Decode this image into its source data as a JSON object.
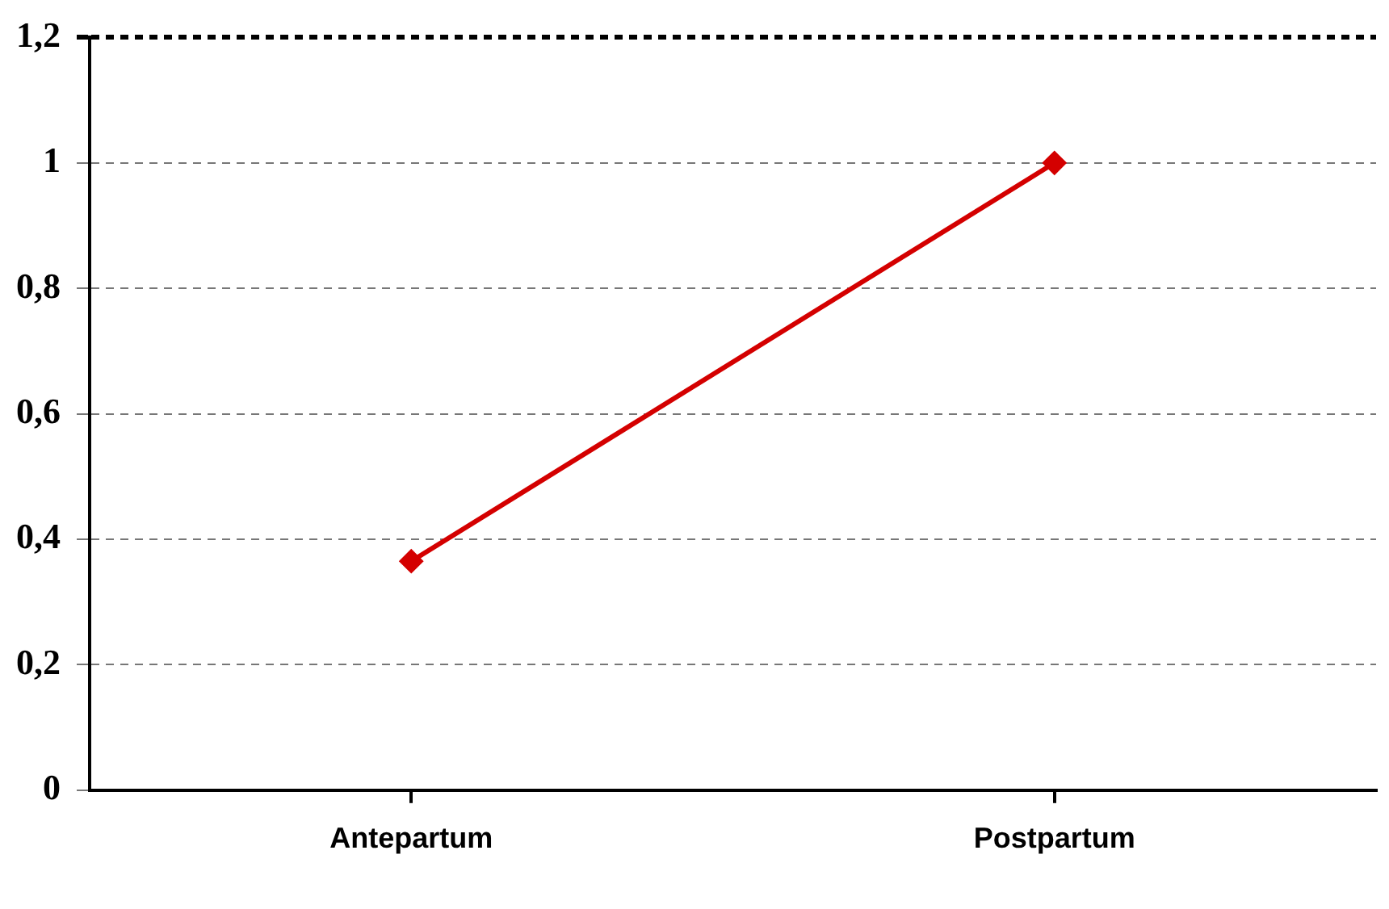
{
  "chart_data": {
    "type": "line",
    "categories": [
      "Antepartum",
      "Postpartum"
    ],
    "series": [
      {
        "color": "#d40000",
        "values": [
          0.365,
          1.0
        ]
      }
    ],
    "ylim": [
      0,
      1.2
    ],
    "yticks": [
      0,
      {
        "value": 0.2,
        "label": "0,2"
      },
      {
        "value": 0.4,
        "label": "0,4"
      },
      {
        "value": 0.6,
        "label": "0,6"
      },
      {
        "value": 0.8,
        "label": "0,8"
      },
      1,
      {
        "value": 1.2,
        "label": "1,2"
      }
    ],
    "grid": "y",
    "legend": false,
    "marker": "diamond",
    "line_style": "solid"
  }
}
